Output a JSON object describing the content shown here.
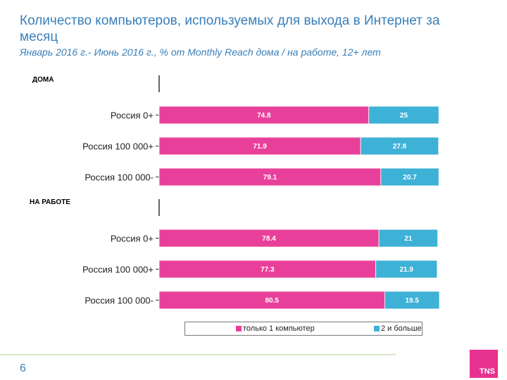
{
  "header": {
    "title": "Количество компьютеров, используемых для выхода в Интернет за месяц",
    "subtitle": "Январь 2016 г.- Июнь 2016 г., % от Monthly Reach дома / на работе, 12+ лет"
  },
  "footer": {
    "page_number": "6",
    "logo_text": "TNS"
  },
  "colors": {
    "one_computer": "#e8409a",
    "two_or_more": "#3eb1d6"
  },
  "chart_data": {
    "type": "bar",
    "orientation": "horizontal",
    "stacked": true,
    "xlim": [
      0,
      100
    ],
    "legend_position": "bottom",
    "groups": [
      {
        "name": "ДОМА",
        "categories": [
          "Россия 0+",
          "Россия 100 000+",
          "Россия 100 000-"
        ],
        "series": [
          {
            "name": "только 1 компьютер",
            "values": [
              74.8,
              71.9,
              79.1
            ]
          },
          {
            "name": "2 и больше",
            "values": [
              25,
              27.8,
              20.7
            ]
          }
        ]
      },
      {
        "name": "НА РАБОТЕ",
        "categories": [
          "Россия 0+",
          "Россия 100 000+",
          "Россия 100 000-"
        ],
        "series": [
          {
            "name": "только 1 компьютер",
            "values": [
              78.4,
              77.3,
              80.5
            ]
          },
          {
            "name": "2 и больше",
            "values": [
              21,
              21.9,
              19.5
            ]
          }
        ]
      }
    ]
  }
}
